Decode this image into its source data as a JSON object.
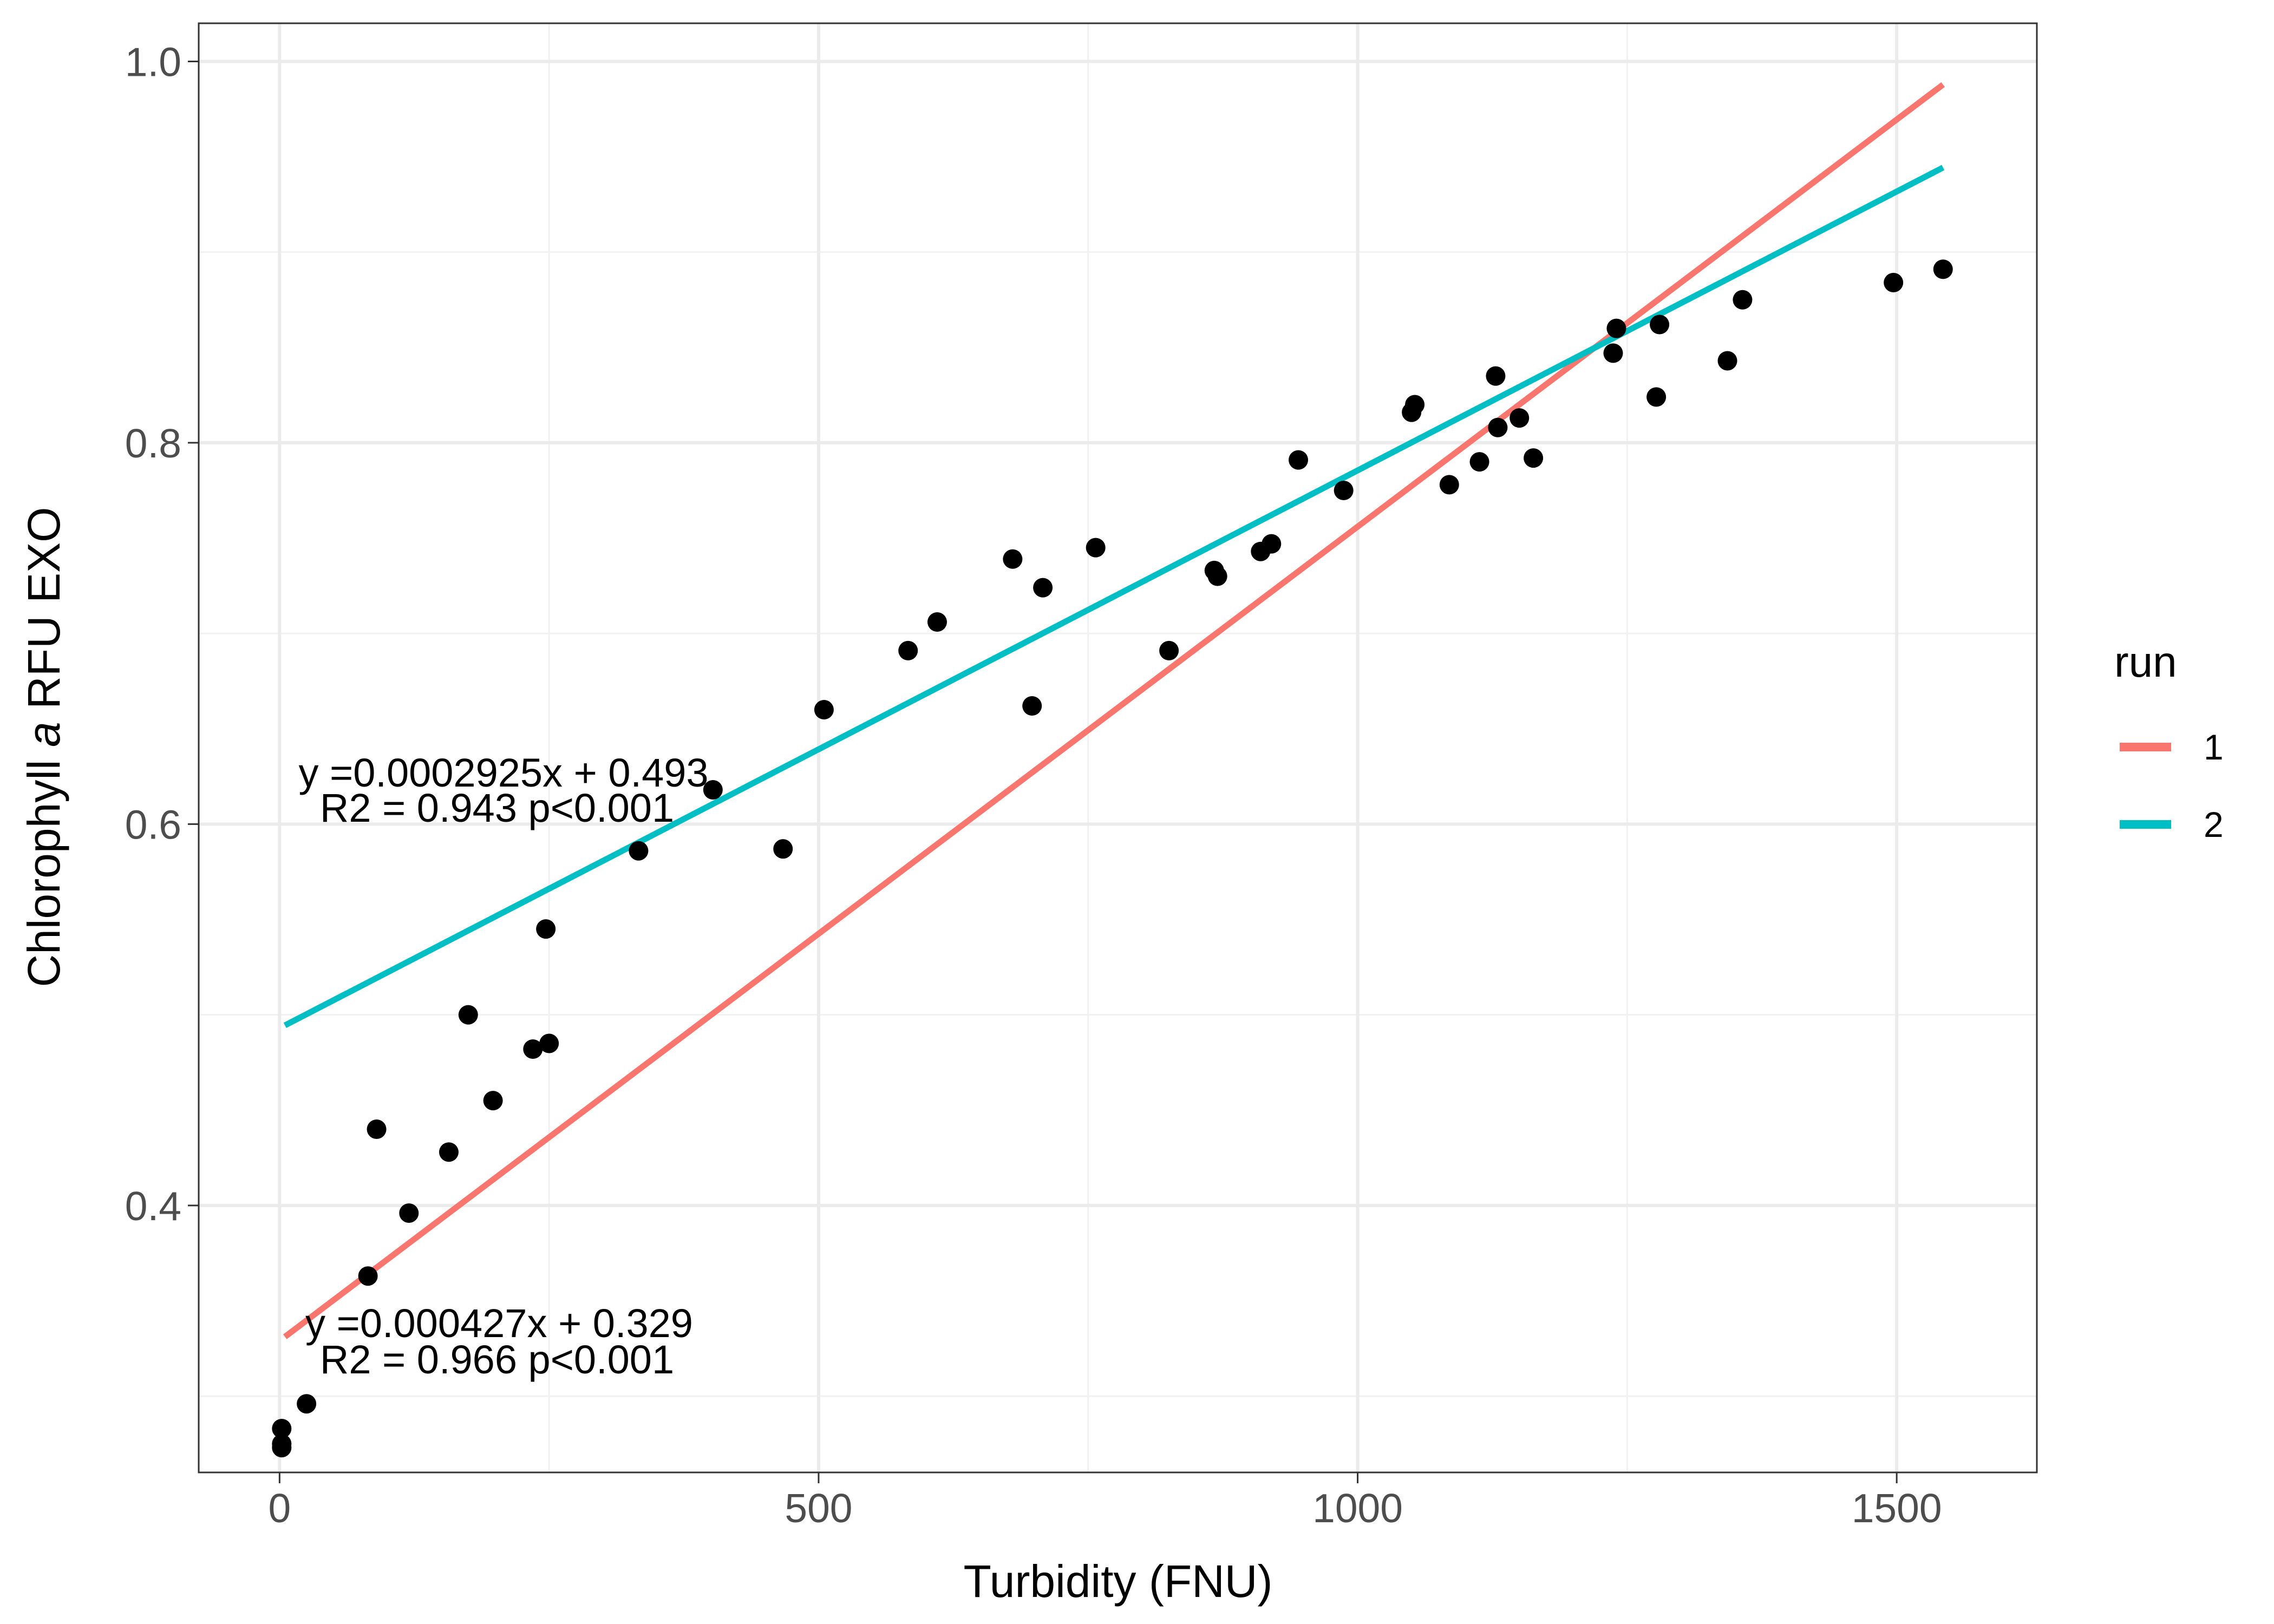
{
  "chart_data": {
    "type": "scatter",
    "xlabel": "Turbidity (FNU)",
    "ylabel_prefix": "Chlorophyll ",
    "ylabel_italic": "a",
    "ylabel_suffix": " RFU EXO",
    "xlim": [
      -75,
      1630
    ],
    "ylim": [
      0.26,
      1.02
    ],
    "x_ticks": [
      0,
      500,
      1000,
      1500
    ],
    "x_tick_labels": [
      "0",
      "500",
      "1000",
      "1500"
    ],
    "y_ticks": [
      0.4,
      0.6,
      0.8,
      1.0
    ],
    "y_tick_labels": [
      "0.4",
      "0.6",
      "0.8",
      "1.0"
    ],
    "grid": true,
    "points": [
      [
        2,
        0.283
      ],
      [
        2,
        0.275
      ],
      [
        2,
        0.273
      ],
      [
        25,
        0.296
      ],
      [
        82,
        0.363
      ],
      [
        90,
        0.44
      ],
      [
        120,
        0.396
      ],
      [
        157,
        0.428
      ],
      [
        175,
        0.5
      ],
      [
        198,
        0.455
      ],
      [
        235,
        0.482
      ],
      [
        247,
        0.545
      ],
      [
        250,
        0.485
      ],
      [
        333,
        0.586
      ],
      [
        402,
        0.618
      ],
      [
        467,
        0.587
      ],
      [
        505,
        0.66
      ],
      [
        583,
        0.691
      ],
      [
        610,
        0.706
      ],
      [
        680,
        0.739
      ],
      [
        698,
        0.662
      ],
      [
        708,
        0.724
      ],
      [
        757,
        0.745
      ],
      [
        825,
        0.691
      ],
      [
        867,
        0.733
      ],
      [
        870,
        0.73
      ],
      [
        910,
        0.743
      ],
      [
        920,
        0.747
      ],
      [
        945,
        0.791
      ],
      [
        987,
        0.775
      ],
      [
        1050,
        0.816
      ],
      [
        1053,
        0.82
      ],
      [
        1085,
        0.778
      ],
      [
        1113,
        0.79
      ],
      [
        1128,
        0.835
      ],
      [
        1130,
        0.808
      ],
      [
        1150,
        0.813
      ],
      [
        1163,
        0.792
      ],
      [
        1237,
        0.847
      ],
      [
        1240,
        0.86
      ],
      [
        1277,
        0.824
      ],
      [
        1280,
        0.862
      ],
      [
        1343,
        0.843
      ],
      [
        1357,
        0.875
      ],
      [
        1497,
        0.884
      ],
      [
        1543,
        0.891
      ]
    ],
    "legend": {
      "title": "run",
      "position": "right",
      "entries": [
        {
          "label": "1",
          "color": "#F8766D"
        },
        {
          "label": "2",
          "color": "#00BFC4"
        }
      ]
    },
    "series": [
      {
        "name": "1",
        "color": "#F8766D",
        "slope": 0.000427,
        "intercept": 0.329,
        "x_range": [
          5,
          1543
        ]
      },
      {
        "name": "2",
        "color": "#00BFC4",
        "slope": 0.0002925,
        "intercept": 0.493,
        "x_range": [
          5,
          1543
        ]
      }
    ],
    "annotations": [
      {
        "series": "2",
        "equation": "y =0.0002925x + 0.493",
        "stats": "R2 = 0.943 p<0.001"
      },
      {
        "series": "1",
        "equation": "y =0.000427x + 0.329",
        "stats": "R2 = 0.966 p<0.001"
      }
    ]
  }
}
